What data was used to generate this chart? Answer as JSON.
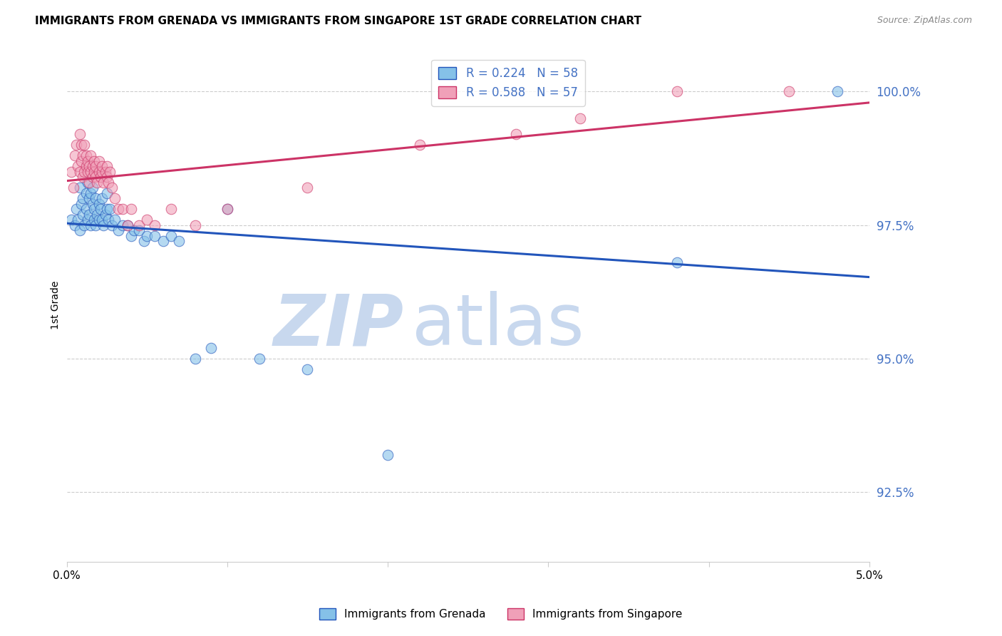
{
  "title": "IMMIGRANTS FROM GRENADA VS IMMIGRANTS FROM SINGAPORE 1ST GRADE CORRELATION CHART",
  "source": "Source: ZipAtlas.com",
  "ylabel": "1st Grade",
  "xmin": 0.0,
  "xmax": 5.0,
  "ymin": 91.2,
  "ymax": 100.8,
  "yticks": [
    92.5,
    95.0,
    97.5,
    100.0
  ],
  "ytick_labels": [
    "92.5%",
    "95.0%",
    "97.5%",
    "100.0%"
  ],
  "xticks": [
    0.0,
    1.0,
    2.0,
    3.0,
    4.0,
    5.0
  ],
  "xtick_labels": [
    "0.0%",
    "",
    "",
    "",
    "",
    "5.0%"
  ],
  "legend_r1": "R = 0.224",
  "legend_n1": "N = 58",
  "legend_r2": "R = 0.588",
  "legend_n2": "N = 57",
  "color_grenada": "#85c1e8",
  "color_singapore": "#f0a0b8",
  "color_line_grenada": "#2255bb",
  "color_line_singapore": "#cc3366",
  "watermark_zip_color": "#c8d8ee",
  "watermark_atlas_color": "#c8d8ee",
  "axis_tick_color": "#4472c4",
  "grenada_x": [
    0.03,
    0.05,
    0.06,
    0.07,
    0.08,
    0.08,
    0.09,
    0.1,
    0.1,
    0.11,
    0.12,
    0.12,
    0.13,
    0.13,
    0.14,
    0.14,
    0.15,
    0.15,
    0.16,
    0.16,
    0.17,
    0.17,
    0.18,
    0.18,
    0.19,
    0.2,
    0.2,
    0.21,
    0.22,
    0.22,
    0.23,
    0.24,
    0.25,
    0.25,
    0.26,
    0.27,
    0.28,
    0.3,
    0.32,
    0.35,
    0.38,
    0.4,
    0.42,
    0.45,
    0.48,
    0.5,
    0.55,
    0.6,
    0.65,
    0.7,
    0.8,
    0.9,
    1.0,
    1.2,
    1.5,
    2.0,
    3.8,
    4.8
  ],
  "grenada_y": [
    97.6,
    97.5,
    97.8,
    97.6,
    98.2,
    97.4,
    97.9,
    98.0,
    97.7,
    97.5,
    98.1,
    97.8,
    97.6,
    98.3,
    98.0,
    97.7,
    98.1,
    97.5,
    97.9,
    98.2,
    97.6,
    97.8,
    98.0,
    97.5,
    97.7,
    97.6,
    97.9,
    97.8,
    98.0,
    97.6,
    97.5,
    97.7,
    97.8,
    98.1,
    97.6,
    97.8,
    97.5,
    97.6,
    97.4,
    97.5,
    97.5,
    97.3,
    97.4,
    97.4,
    97.2,
    97.3,
    97.3,
    97.2,
    97.3,
    97.2,
    95.0,
    95.2,
    97.8,
    95.0,
    94.8,
    93.2,
    96.8,
    100.0
  ],
  "singapore_x": [
    0.03,
    0.04,
    0.05,
    0.06,
    0.07,
    0.08,
    0.08,
    0.09,
    0.09,
    0.1,
    0.1,
    0.11,
    0.11,
    0.12,
    0.12,
    0.13,
    0.13,
    0.14,
    0.14,
    0.15,
    0.15,
    0.16,
    0.16,
    0.17,
    0.17,
    0.18,
    0.18,
    0.19,
    0.2,
    0.2,
    0.21,
    0.22,
    0.22,
    0.23,
    0.24,
    0.25,
    0.25,
    0.26,
    0.27,
    0.28,
    0.3,
    0.32,
    0.35,
    0.38,
    0.4,
    0.45,
    0.5,
    0.55,
    0.65,
    0.8,
    1.0,
    1.5,
    2.2,
    2.8,
    3.2,
    3.8,
    4.5
  ],
  "singapore_y": [
    98.5,
    98.2,
    98.8,
    99.0,
    98.6,
    99.2,
    98.5,
    99.0,
    98.7,
    98.8,
    98.4,
    98.5,
    99.0,
    98.6,
    98.8,
    98.5,
    98.7,
    98.3,
    98.6,
    98.5,
    98.8,
    98.4,
    98.6,
    98.5,
    98.7,
    98.4,
    98.6,
    98.3,
    98.5,
    98.7,
    98.4,
    98.5,
    98.6,
    98.3,
    98.5,
    98.4,
    98.6,
    98.3,
    98.5,
    98.2,
    98.0,
    97.8,
    97.8,
    97.5,
    97.8,
    97.5,
    97.6,
    97.5,
    97.8,
    97.5,
    97.8,
    98.2,
    99.0,
    99.2,
    99.5,
    100.0,
    100.0
  ]
}
